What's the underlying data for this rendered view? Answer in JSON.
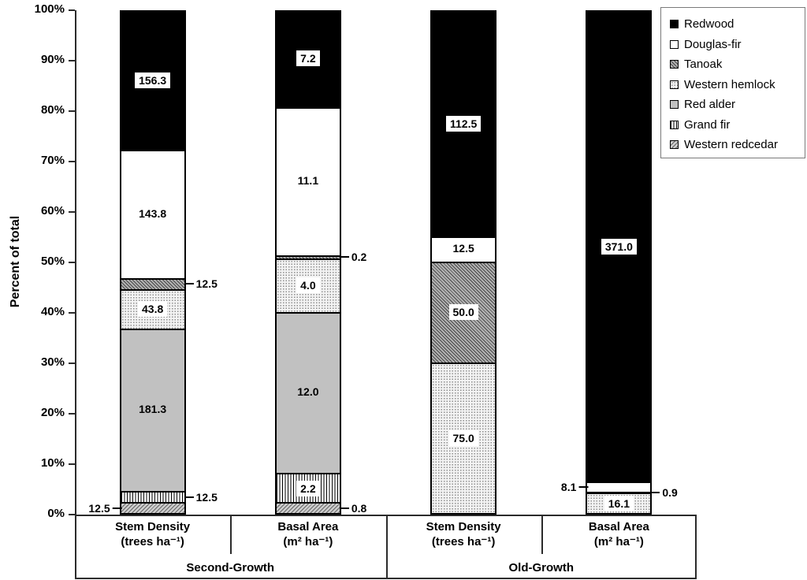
{
  "figure": {
    "ylabel": "Percent of total",
    "y_ticks": [
      "0%",
      "10%",
      "20%",
      "30%",
      "40%",
      "50%",
      "60%",
      "70%",
      "80%",
      "90%",
      "100%"
    ]
  },
  "legend": {
    "items": [
      {
        "id": "redwood",
        "label": "Redwood"
      },
      {
        "id": "douglas-fir",
        "label": "Douglas-fir"
      },
      {
        "id": "tanoak",
        "label": "Tanoak"
      },
      {
        "id": "western-hemlock",
        "label": "Western hemlock"
      },
      {
        "id": "red-alder",
        "label": "Red alder"
      },
      {
        "id": "grand-fir",
        "label": "Grand fir"
      },
      {
        "id": "western-redcedar",
        "label": "Western redcedar"
      }
    ]
  },
  "chart_data": {
    "type": "bar",
    "subtype": "100-percent-stacked-vertical",
    "ylabel": "Percent of total",
    "ylim": [
      0,
      100
    ],
    "y_tick_labels": [
      "0%",
      "10%",
      "20%",
      "30%",
      "40%",
      "50%",
      "60%",
      "70%",
      "80%",
      "90%",
      "100%"
    ],
    "grid": false,
    "legend_position": "top-right",
    "legend_entries": [
      "Redwood",
      "Douglas-fir",
      "Tanoak",
      "Western hemlock",
      "Red alder",
      "Grand fir",
      "Western redcedar"
    ],
    "groups": [
      {
        "label": "Second-Growth",
        "bar_indices": [
          0,
          1
        ]
      },
      {
        "label": "Old-Growth",
        "bar_indices": [
          2,
          3
        ]
      }
    ],
    "bars": [
      {
        "id": "sg-stem-density",
        "group": "Second-Growth",
        "xlabel_line1": "Stem Density",
        "xlabel_line2": "(trees ha⁻¹)",
        "segments_bottom_to_top": [
          {
            "species": "Western redcedar",
            "species_id": "western-redcedar",
            "value": 12.5,
            "label": "12.5",
            "label_pos": "left",
            "label_boxed": false
          },
          {
            "species": "Grand fir",
            "species_id": "grand-fir",
            "value": 12.5,
            "label": "12.5",
            "label_pos": "right",
            "label_boxed": false
          },
          {
            "species": "Red alder",
            "species_id": "red-alder",
            "value": 181.3,
            "label": "181.3",
            "label_pos": "inside",
            "label_boxed": false
          },
          {
            "species": "Western hemlock",
            "species_id": "western-hemlock",
            "value": 43.8,
            "label": "43.8",
            "label_pos": "inside",
            "label_boxed": true
          },
          {
            "species": "Tanoak",
            "species_id": "tanoak",
            "value": 12.5,
            "label": "12.5",
            "label_pos": "right",
            "label_boxed": false
          },
          {
            "species": "Douglas-fir",
            "species_id": "douglas-fir",
            "value": 143.8,
            "label": "143.8",
            "label_pos": "inside",
            "label_boxed": false
          },
          {
            "species": "Redwood",
            "species_id": "redwood",
            "value": 156.3,
            "label": "156.3",
            "label_pos": "inside",
            "label_boxed": true,
            "label_bordered": true
          }
        ]
      },
      {
        "id": "sg-basal-area",
        "group": "Second-Growth",
        "xlabel_line1": "Basal Area",
        "xlabel_line2": "(m² ha⁻¹)",
        "segments_bottom_to_top": [
          {
            "species": "Western redcedar",
            "species_id": "western-redcedar",
            "value": 0.8,
            "label": "0.8",
            "label_pos": "right",
            "label_boxed": false
          },
          {
            "species": "Grand fir",
            "species_id": "grand-fir",
            "value": 2.2,
            "label": "2.2",
            "label_pos": "inside",
            "label_boxed": true
          },
          {
            "species": "Red alder",
            "species_id": "red-alder",
            "value": 12.0,
            "label": "12.0",
            "label_pos": "inside",
            "label_boxed": false
          },
          {
            "species": "Western hemlock",
            "species_id": "western-hemlock",
            "value": 4.0,
            "label": "4.0",
            "label_pos": "inside",
            "label_boxed": true
          },
          {
            "species": "Tanoak",
            "species_id": "tanoak",
            "value": 0.2,
            "label": "0.2",
            "label_pos": "right",
            "label_boxed": false
          },
          {
            "species": "Douglas-fir",
            "species_id": "douglas-fir",
            "value": 11.1,
            "label": "11.1",
            "label_pos": "inside",
            "label_boxed": false
          },
          {
            "species": "Redwood",
            "species_id": "redwood",
            "value": 7.2,
            "label": "7.2",
            "label_pos": "inside",
            "label_boxed": true,
            "label_bordered": true
          }
        ]
      },
      {
        "id": "og-stem-density",
        "group": "Old-Growth",
        "xlabel_line1": "Stem Density",
        "xlabel_line2": "(trees ha⁻¹)",
        "segments_bottom_to_top": [
          {
            "species": "Western hemlock",
            "species_id": "western-hemlock",
            "value": 75.0,
            "label": "75.0",
            "label_pos": "inside",
            "label_boxed": true
          },
          {
            "species": "Tanoak",
            "species_id": "tanoak",
            "value": 50.0,
            "label": "50.0",
            "label_pos": "inside",
            "label_boxed": true
          },
          {
            "species": "Douglas-fir",
            "species_id": "douglas-fir",
            "value": 12.5,
            "label": "12.5",
            "label_pos": "inside",
            "label_boxed": false
          },
          {
            "species": "Redwood",
            "species_id": "redwood",
            "value": 112.5,
            "label": "112.5",
            "label_pos": "inside",
            "label_boxed": true,
            "label_bordered": true
          }
        ]
      },
      {
        "id": "og-basal-area",
        "group": "Old-Growth",
        "xlabel_line1": "Basal Area",
        "xlabel_line2": "(m² ha⁻¹)",
        "segments_bottom_to_top": [
          {
            "species": "Western hemlock",
            "species_id": "western-hemlock",
            "value": 16.1,
            "label": "16.1",
            "label_pos": "inside",
            "label_boxed": true
          },
          {
            "species": "Tanoak",
            "species_id": "tanoak",
            "value": 0.9,
            "label": "0.9",
            "label_pos": "right",
            "label_boxed": false
          },
          {
            "species": "Douglas-fir",
            "species_id": "douglas-fir",
            "value": 8.1,
            "label": "8.1",
            "label_pos": "left",
            "label_boxed": false
          },
          {
            "species": "Redwood",
            "species_id": "redwood",
            "value": 371.0,
            "label": "371.0",
            "label_pos": "inside",
            "label_boxed": true,
            "label_bordered": true
          }
        ]
      }
    ],
    "colors": {
      "redwood": "#000000",
      "douglas-fir": "#ffffff",
      "tanoak": "#b2b2b2",
      "western-hemlock": "#f3f3f3",
      "red-alder": "#c1c1c1",
      "grand-fir": "#ffffff",
      "western-redcedar": "#cdcdcd"
    }
  }
}
